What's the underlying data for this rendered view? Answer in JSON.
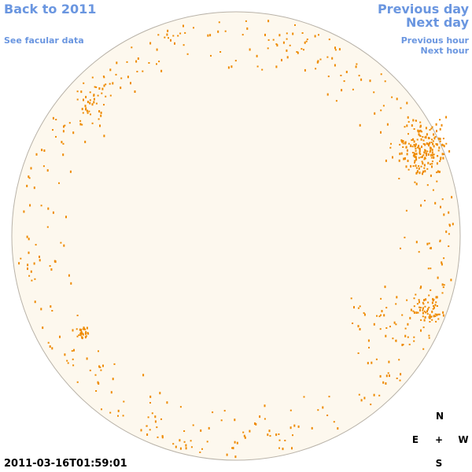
{
  "nav": {
    "back": "Back to 2011",
    "facular": "See facular data",
    "previous_day": "Previous day",
    "next_day": "Next day",
    "previous_hour": "Previous hour",
    "next_hour": "Next hour"
  },
  "timestamp": "2011-03-16T01:59:01",
  "compass": {
    "north": "N",
    "east": "E",
    "center": "+",
    "west": "W",
    "south": "S"
  }
}
